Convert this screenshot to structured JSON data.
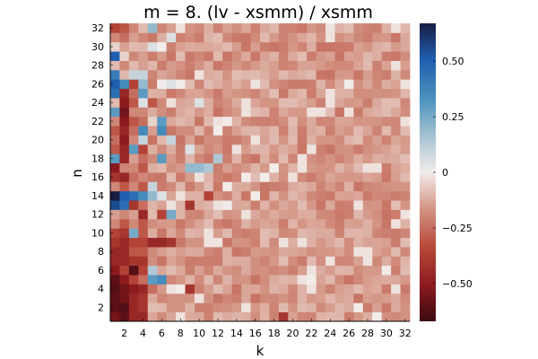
{
  "chart_data": {
    "type": "heatmap",
    "title": "m = 8. (lv - xsmm) / xsmm",
    "xlabel": "k",
    "ylabel": "n",
    "x_range": [
      1,
      32
    ],
    "y_range": [
      1,
      32
    ],
    "x_tick_labels": [
      "2",
      "4",
      "6",
      "8",
      "10",
      "12",
      "14",
      "16",
      "18",
      "20",
      "22",
      "24",
      "26",
      "28",
      "30",
      "32"
    ],
    "y_tick_labels": [
      "2",
      "4",
      "6",
      "8",
      "10",
      "12",
      "14",
      "16",
      "18",
      "20",
      "22",
      "24",
      "26",
      "28",
      "30",
      "32"
    ],
    "colorbar": {
      "range": [
        -0.67,
        0.67
      ],
      "tick_values": [
        0.5,
        0.25,
        0,
        -0.25,
        -0.5
      ],
      "tick_labels": [
        "0.50",
        "0.25",
        "0",
        "−0.25",
        "−0.50"
      ],
      "colormap": "balance (diverging: dark red → white → dark blue)"
    },
    "grid": false,
    "baseline_value": -0.15,
    "notable_cells": [
      {
        "k": 1,
        "n": 1,
        "v": -0.55
      },
      {
        "k": 1,
        "n": 2,
        "v": -0.6
      },
      {
        "k": 1,
        "n": 3,
        "v": -0.6
      },
      {
        "k": 1,
        "n": 4,
        "v": -0.62
      },
      {
        "k": 1,
        "n": 5,
        "v": -0.6
      },
      {
        "k": 1,
        "n": 6,
        "v": -0.5
      },
      {
        "k": 1,
        "n": 7,
        "v": -0.45
      },
      {
        "k": 1,
        "n": 8,
        "v": -0.45
      },
      {
        "k": 1,
        "n": 9,
        "v": -0.4
      },
      {
        "k": 1,
        "n": 10,
        "v": -0.35
      },
      {
        "k": 1,
        "n": 11,
        "v": -0.2
      },
      {
        "k": 1,
        "n": 12,
        "v": -0.15
      },
      {
        "k": 1,
        "n": 13,
        "v": 0.55
      },
      {
        "k": 1,
        "n": 14,
        "v": 0.67
      },
      {
        "k": 1,
        "n": 15,
        "v": -0.2
      },
      {
        "k": 1,
        "n": 16,
        "v": -0.4
      },
      {
        "k": 1,
        "n": 17,
        "v": -0.5
      },
      {
        "k": 1,
        "n": 18,
        "v": 0.3
      },
      {
        "k": 1,
        "n": 19,
        "v": -0.3
      },
      {
        "k": 1,
        "n": 20,
        "v": -0.25
      },
      {
        "k": 1,
        "n": 21,
        "v": -0.3
      },
      {
        "k": 1,
        "n": 22,
        "v": -0.2
      },
      {
        "k": 1,
        "n": 23,
        "v": 0.3
      },
      {
        "k": 1,
        "n": 24,
        "v": -0.1
      },
      {
        "k": 1,
        "n": 25,
        "v": 0.45
      },
      {
        "k": 1,
        "n": 26,
        "v": 0.5
      },
      {
        "k": 1,
        "n": 27,
        "v": 0.4
      },
      {
        "k": 1,
        "n": 28,
        "v": -0.1
      },
      {
        "k": 1,
        "n": 29,
        "v": 0.5
      },
      {
        "k": 1,
        "n": 30,
        "v": -0.05
      },
      {
        "k": 1,
        "n": 31,
        "v": -0.2
      },
      {
        "k": 1,
        "n": 32,
        "v": -0.35
      },
      {
        "k": 2,
        "n": 1,
        "v": -0.6
      },
      {
        "k": 2,
        "n": 2,
        "v": -0.62
      },
      {
        "k": 2,
        "n": 3,
        "v": -0.55
      },
      {
        "k": 2,
        "n": 4,
        "v": -0.55
      },
      {
        "k": 2,
        "n": 5,
        "v": -0.5
      },
      {
        "k": 2,
        "n": 6,
        "v": -0.35
      },
      {
        "k": 2,
        "n": 7,
        "v": -0.45
      },
      {
        "k": 2,
        "n": 8,
        "v": -0.45
      },
      {
        "k": 2,
        "n": 9,
        "v": -0.45
      },
      {
        "k": 2,
        "n": 10,
        "v": -0.4
      },
      {
        "k": 2,
        "n": 11,
        "v": -0.3
      },
      {
        "k": 2,
        "n": 12,
        "v": -0.2
      },
      {
        "k": 2,
        "n": 13,
        "v": 0.45
      },
      {
        "k": 2,
        "n": 14,
        "v": 0.5
      },
      {
        "k": 2,
        "n": 15,
        "v": -0.3
      },
      {
        "k": 2,
        "n": 16,
        "v": -0.45
      },
      {
        "k": 2,
        "n": 17,
        "v": -0.2
      },
      {
        "k": 2,
        "n": 18,
        "v": -0.45
      },
      {
        "k": 2,
        "n": 19,
        "v": -0.45
      },
      {
        "k": 2,
        "n": 20,
        "v": -0.5
      },
      {
        "k": 2,
        "n": 21,
        "v": -0.45
      },
      {
        "k": 2,
        "n": 22,
        "v": -0.5
      },
      {
        "k": 2,
        "n": 23,
        "v": -0.55
      },
      {
        "k": 2,
        "n": 24,
        "v": -0.5
      },
      {
        "k": 2,
        "n": 25,
        "v": -0.45
      },
      {
        "k": 2,
        "n": 26,
        "v": 0.35
      },
      {
        "k": 2,
        "n": 27,
        "v": -0.1
      },
      {
        "k": 2,
        "n": 28,
        "v": -0.2
      },
      {
        "k": 2,
        "n": 29,
        "v": -0.05
      },
      {
        "k": 2,
        "n": 30,
        "v": -0.15
      },
      {
        "k": 2,
        "n": 31,
        "v": -0.25
      },
      {
        "k": 2,
        "n": 32,
        "v": -0.3
      },
      {
        "k": 3,
        "n": 1,
        "v": -0.45
      },
      {
        "k": 3,
        "n": 2,
        "v": -0.45
      },
      {
        "k": 3,
        "n": 3,
        "v": -0.45
      },
      {
        "k": 3,
        "n": 4,
        "v": -0.5
      },
      {
        "k": 3,
        "n": 5,
        "v": -0.35
      },
      {
        "k": 3,
        "n": 6,
        "v": -0.62
      },
      {
        "k": 3,
        "n": 7,
        "v": -0.4
      },
      {
        "k": 3,
        "n": 8,
        "v": -0.3
      },
      {
        "k": 3,
        "n": 9,
        "v": -0.35
      },
      {
        "k": 3,
        "n": 10,
        "v": 0.25
      },
      {
        "k": 3,
        "n": 11,
        "v": -0.2
      },
      {
        "k": 3,
        "n": 12,
        "v": -0.15
      },
      {
        "k": 3,
        "n": 13,
        "v": -0.4
      },
      {
        "k": 3,
        "n": 14,
        "v": 0.45
      },
      {
        "k": 3,
        "n": 15,
        "v": -0.2
      },
      {
        "k": 3,
        "n": 16,
        "v": -0.25
      },
      {
        "k": 3,
        "n": 17,
        "v": -0.2
      },
      {
        "k": 3,
        "n": 18,
        "v": -0.15
      },
      {
        "k": 3,
        "n": 19,
        "v": 0.3
      },
      {
        "k": 3,
        "n": 20,
        "v": -0.2
      },
      {
        "k": 3,
        "n": 21,
        "v": -0.25
      },
      {
        "k": 3,
        "n": 22,
        "v": -0.3
      },
      {
        "k": 3,
        "n": 23,
        "v": -0.2
      },
      {
        "k": 3,
        "n": 24,
        "v": -0.3
      },
      {
        "k": 3,
        "n": 25,
        "v": -0.25
      },
      {
        "k": 3,
        "n": 26,
        "v": -0.35
      },
      {
        "k": 3,
        "n": 27,
        "v": 0.1
      },
      {
        "k": 3,
        "n": 28,
        "v": -0.1
      },
      {
        "k": 3,
        "n": 29,
        "v": -0.2
      },
      {
        "k": 3,
        "n": 30,
        "v": -0.1
      },
      {
        "k": 3,
        "n": 31,
        "v": -0.15
      },
      {
        "k": 3,
        "n": 32,
        "v": -0.2
      },
      {
        "k": 4,
        "n": 1,
        "v": -0.45
      },
      {
        "k": 4,
        "n": 2,
        "v": -0.4
      },
      {
        "k": 4,
        "n": 3,
        "v": -0.4
      },
      {
        "k": 4,
        "n": 4,
        "v": -0.45
      },
      {
        "k": 4,
        "n": 5,
        "v": -0.25
      },
      {
        "k": 4,
        "n": 6,
        "v": -0.35
      },
      {
        "k": 4,
        "n": 7,
        "v": -0.4
      },
      {
        "k": 4,
        "n": 8,
        "v": -0.3
      },
      {
        "k": 4,
        "n": 9,
        "v": -0.35
      },
      {
        "k": 4,
        "n": 10,
        "v": -0.3
      },
      {
        "k": 4,
        "n": 11,
        "v": -0.3
      },
      {
        "k": 4,
        "n": 12,
        "v": -0.45
      },
      {
        "k": 4,
        "n": 13,
        "v": -0.25
      },
      {
        "k": 4,
        "n": 14,
        "v": 0.35
      },
      {
        "k": 4,
        "n": 15,
        "v": -0.3
      },
      {
        "k": 4,
        "n": 16,
        "v": -0.2
      },
      {
        "k": 4,
        "n": 17,
        "v": -0.3
      },
      {
        "k": 4,
        "n": 18,
        "v": -0.25
      },
      {
        "k": 4,
        "n": 19,
        "v": -0.35
      },
      {
        "k": 4,
        "n": 20,
        "v": 0.1
      },
      {
        "k": 4,
        "n": 21,
        "v": 0.35
      },
      {
        "k": 4,
        "n": 22,
        "v": -0.25
      },
      {
        "k": 4,
        "n": 23,
        "v": -0.2
      },
      {
        "k": 4,
        "n": 24,
        "v": 0.05
      },
      {
        "k": 4,
        "n": 25,
        "v": 0.3
      },
      {
        "k": 4,
        "n": 26,
        "v": 0.2
      },
      {
        "k": 4,
        "n": 27,
        "v": 0.1
      },
      {
        "k": 4,
        "n": 28,
        "v": -0.15
      },
      {
        "k": 5,
        "n": 4,
        "v": -0.25
      },
      {
        "k": 5,
        "n": 5,
        "v": 0.3
      },
      {
        "k": 5,
        "n": 6,
        "v": 0.15
      },
      {
        "k": 5,
        "n": 9,
        "v": -0.45
      },
      {
        "k": 5,
        "n": 12,
        "v": -0.1
      },
      {
        "k": 5,
        "n": 14,
        "v": 0.2
      },
      {
        "k": 5,
        "n": 15,
        "v": 0.1
      },
      {
        "k": 5,
        "n": 22,
        "v": -0.05
      },
      {
        "k": 5,
        "n": 24,
        "v": -0.3
      },
      {
        "k": 5,
        "n": 30,
        "v": 0.05
      },
      {
        "k": 5,
        "n": 32,
        "v": 0.2
      },
      {
        "k": 6,
        "n": 5,
        "v": 0.35
      },
      {
        "k": 6,
        "n": 9,
        "v": -0.45
      },
      {
        "k": 6,
        "n": 12,
        "v": -0.35
      },
      {
        "k": 6,
        "n": 14,
        "v": 0.05
      },
      {
        "k": 6,
        "n": 18,
        "v": 0.3
      },
      {
        "k": 6,
        "n": 21,
        "v": 0.35
      },
      {
        "k": 6,
        "n": 22,
        "v": 0.3
      },
      {
        "k": 6,
        "n": 26,
        "v": 0.0
      },
      {
        "k": 6,
        "n": 30,
        "v": 0.0
      },
      {
        "k": 7,
        "n": 9,
        "v": -0.4
      },
      {
        "k": 7,
        "n": 12,
        "v": 0.25
      },
      {
        "k": 7,
        "n": 20,
        "v": 0.1
      },
      {
        "k": 7,
        "n": 26,
        "v": 0.05
      },
      {
        "k": 7,
        "n": 31,
        "v": 0.05
      },
      {
        "k": 8,
        "n": 4,
        "v": 0.0
      },
      {
        "k": 8,
        "n": 26,
        "v": 0.0
      },
      {
        "k": 9,
        "n": 4,
        "v": -0.4
      },
      {
        "k": 9,
        "n": 13,
        "v": -0.4
      },
      {
        "k": 9,
        "n": 17,
        "v": 0.2
      },
      {
        "k": 9,
        "n": 19,
        "v": 0.05
      },
      {
        "k": 10,
        "n": 17,
        "v": 0.2
      },
      {
        "k": 10,
        "n": 24,
        "v": 0.05
      },
      {
        "k": 11,
        "n": 17,
        "v": 0.15
      },
      {
        "k": 11,
        "n": 14,
        "v": -0.35
      },
      {
        "k": 12,
        "n": 18,
        "v": 0.15
      },
      {
        "k": 12,
        "n": 21,
        "v": 0.0
      },
      {
        "k": 13,
        "n": 13,
        "v": 0.0
      },
      {
        "k": 13,
        "n": 15,
        "v": 0.0
      },
      {
        "k": 13,
        "n": 22,
        "v": 0.0
      },
      {
        "k": 15,
        "n": 16,
        "v": 0.0
      },
      {
        "k": 16,
        "n": 14,
        "v": 0.0
      },
      {
        "k": 17,
        "n": 16,
        "v": 0.0
      },
      {
        "k": 18,
        "n": 17,
        "v": 0.0
      },
      {
        "k": 19,
        "n": 1,
        "v": -0.4
      },
      {
        "k": 19,
        "n": 2,
        "v": -0.1
      },
      {
        "k": 22,
        "n": 5,
        "v": 0.0
      },
      {
        "k": 26,
        "n": 26,
        "v": 0.0
      },
      {
        "k": 27,
        "n": 2,
        "v": 0.0
      },
      {
        "k": 29,
        "n": 1,
        "v": 0.0
      },
      {
        "k": 30,
        "n": 6,
        "v": 0.0
      }
    ]
  }
}
